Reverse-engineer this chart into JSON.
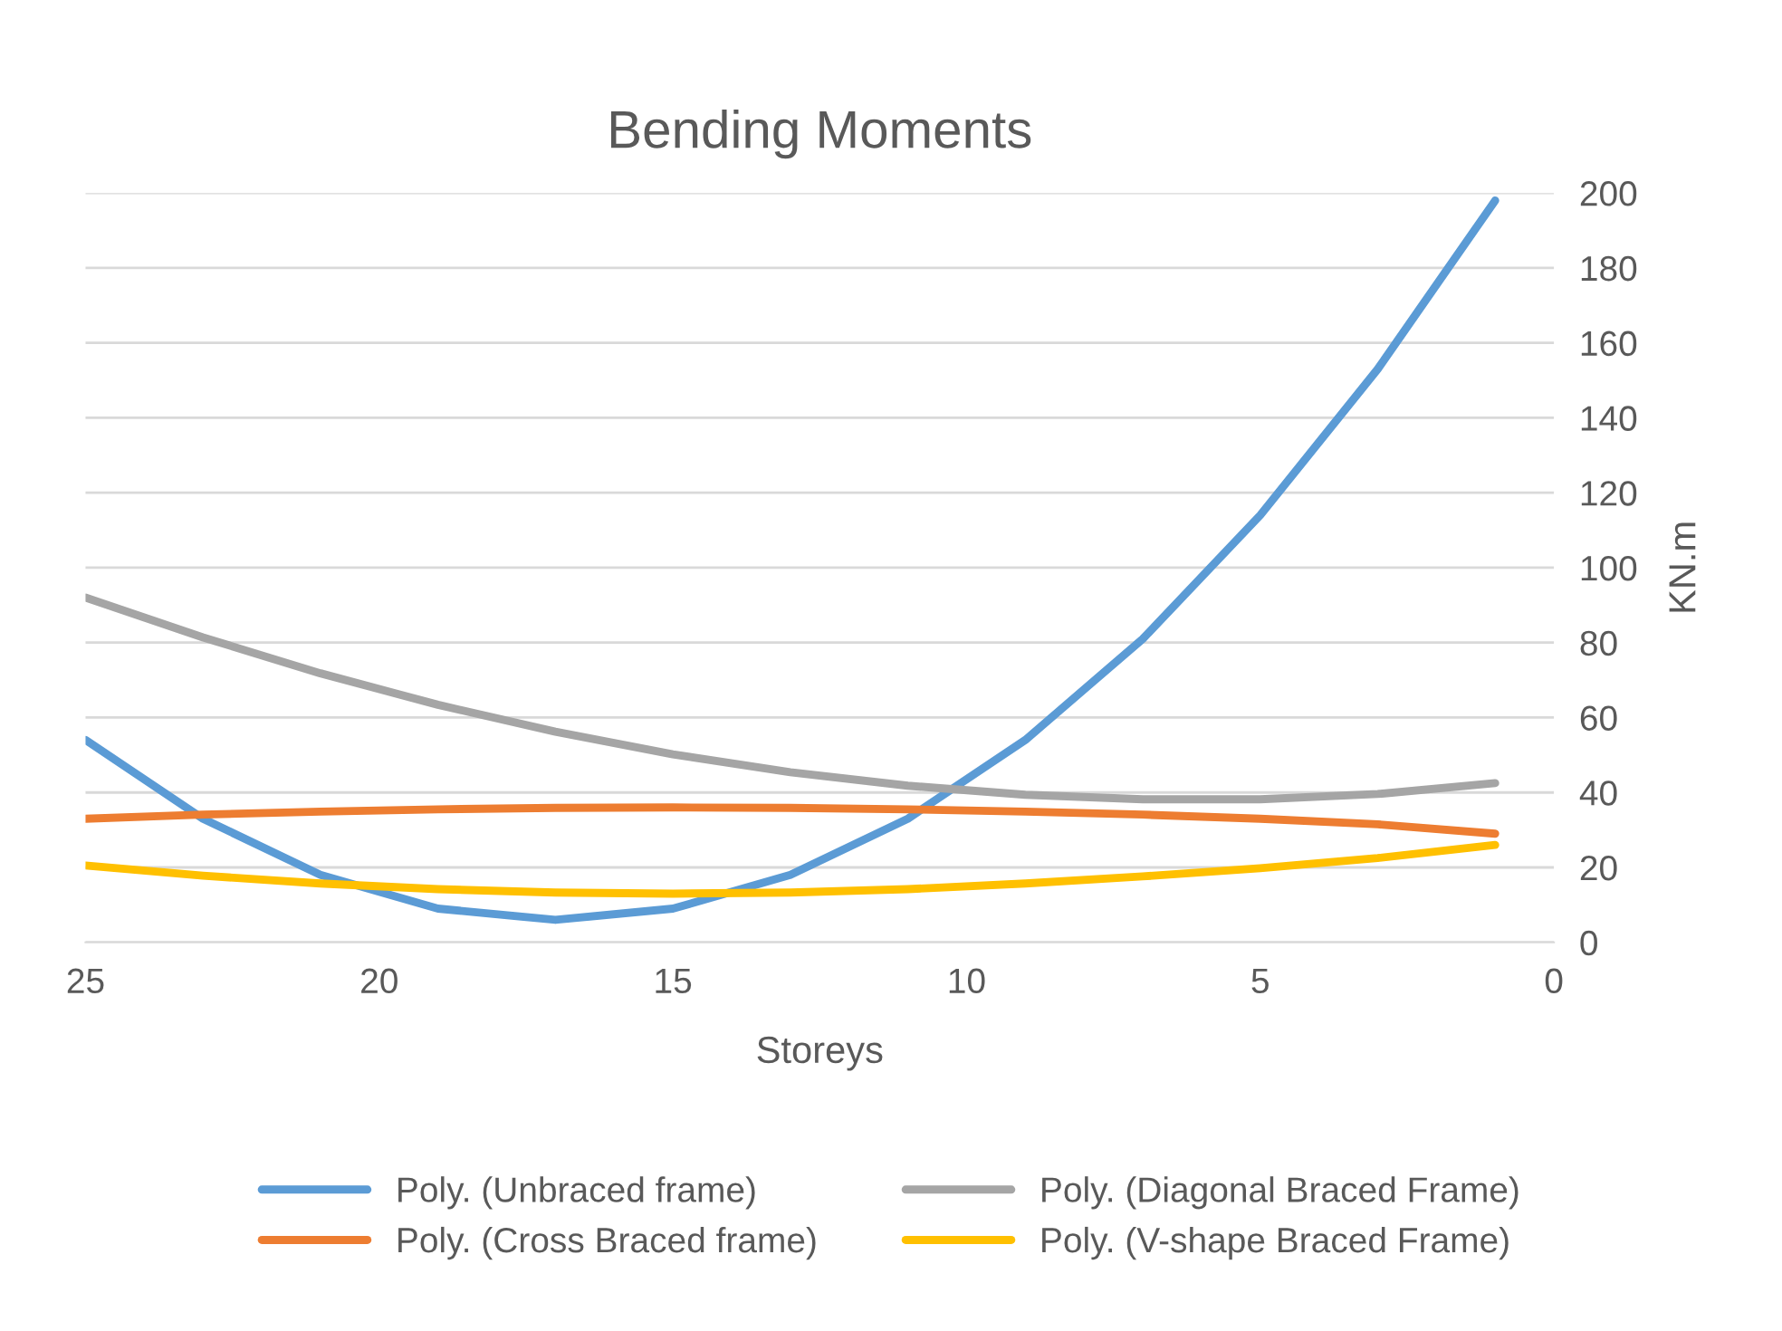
{
  "chart_data": {
    "type": "line",
    "title": "Bending Moments",
    "xlabel": "Storeys",
    "ylabel": "KN.m",
    "x": [
      25,
      23,
      21,
      19,
      17,
      15,
      13,
      11,
      9,
      7,
      5,
      3,
      1
    ],
    "series": [
      {
        "name": "Poly. (Unbraced frame)",
        "color": "#5b9bd5",
        "values": [
          54,
          33,
          18,
          9,
          6,
          9,
          18,
          33,
          54,
          81,
          114,
          153,
          198
        ]
      },
      {
        "name": "Poly. (Cross Braced frame)",
        "color": "#ed7d31",
        "values": [
          33,
          34.1,
          34.9,
          35.5,
          35.9,
          36,
          35.9,
          35.5,
          34.9,
          34.1,
          33,
          31.5,
          29
        ]
      },
      {
        "name": "Poly. (Diagonal Braced Frame)",
        "color": "#a5a5a5",
        "values": [
          92,
          81.4,
          71.8,
          63.4,
          56.2,
          50.2,
          45.4,
          41.8,
          39.4,
          38.2,
          38.2,
          39.6,
          42.5
        ]
      },
      {
        "name": "Poly. (V-shape Braced Frame)",
        "color": "#ffc000",
        "values": [
          20.5,
          17.8,
          15.7,
          14.2,
          13.3,
          13,
          13.3,
          14.2,
          15.7,
          17.6,
          19.8,
          22.5,
          26
        ]
      }
    ],
    "xlim": [
      25,
      0
    ],
    "xticks": [
      25,
      20,
      15,
      10,
      5,
      0
    ],
    "ylim": [
      0,
      200
    ],
    "yticks": [
      0,
      20,
      40,
      60,
      80,
      100,
      120,
      140,
      160,
      180,
      200
    ],
    "grid": "y",
    "legend": "bottom",
    "marker": "none",
    "line_style": "solid"
  }
}
